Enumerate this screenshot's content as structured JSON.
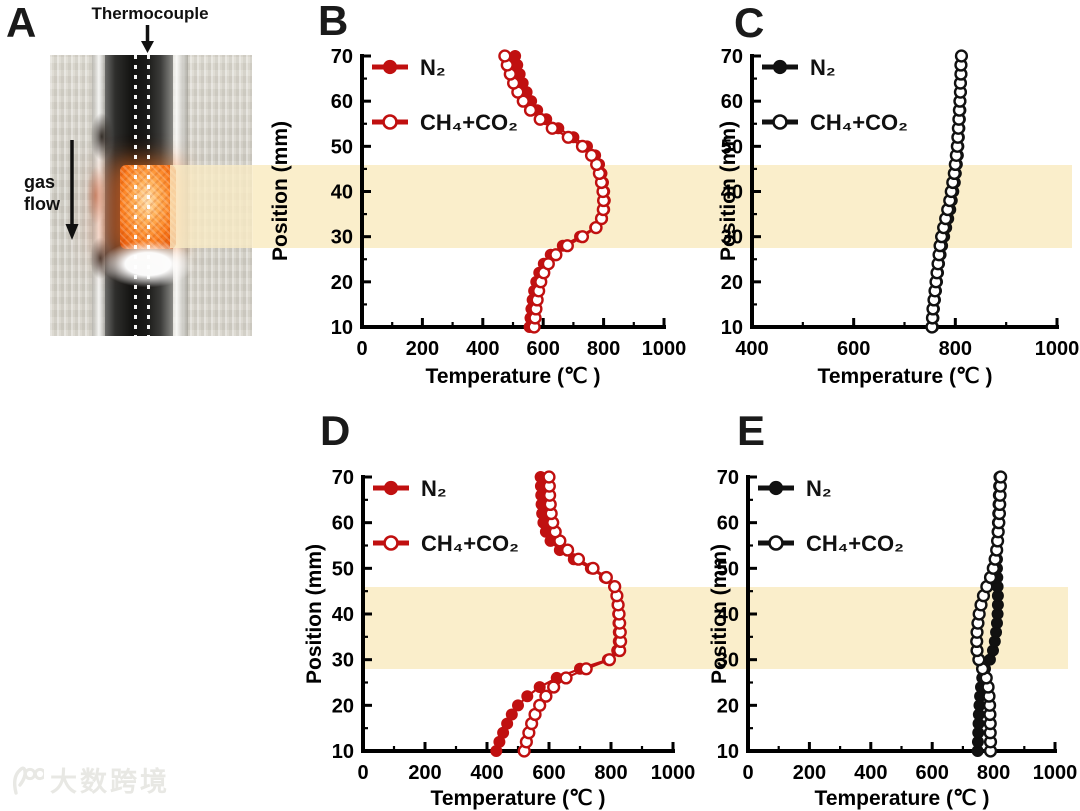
{
  "figure": {
    "background": "#ffffff",
    "band_color": "#FAEECB",
    "catalyst_bed_mm": {
      "from": 28,
      "to": 46
    }
  },
  "panel_a": {
    "label": "A",
    "thermocouple_label": "Thermocouple",
    "gas_flow_line1": "gas",
    "gas_flow_line2": "flow"
  },
  "watermark": {
    "text": "大数跨境",
    "logo": "100-swirl-logo"
  },
  "chart_data": [
    {
      "id": "B",
      "type": "scatter",
      "panel_label": "B",
      "series_color": "#C01010",
      "xlabel": "Temperature (℃ )",
      "ylabel": "Position (mm)",
      "xlim": [
        0,
        1000
      ],
      "x_major_ticks": [
        0,
        200,
        400,
        600,
        800,
        1000
      ],
      "x_minor_step": 100,
      "ylim": [
        10,
        70
      ],
      "y_major_ticks": [
        10,
        20,
        30,
        40,
        50,
        60,
        70
      ],
      "y_minor_step": 5,
      "highlight_band_mm": [
        28,
        46
      ],
      "positions_mm": [
        10,
        12,
        14,
        16,
        18,
        20,
        22,
        24,
        26,
        28,
        30,
        32,
        34,
        36,
        38,
        40,
        42,
        44,
        46,
        48,
        50,
        52,
        54,
        56,
        58,
        60,
        62,
        64,
        66,
        68,
        70
      ],
      "series": [
        {
          "name": "N₂",
          "marker": "filled-circle",
          "temperatures_c": [
            555,
            558,
            561,
            565,
            570,
            577,
            587,
            602,
            625,
            665,
            722,
            772,
            795,
            802,
            804,
            802,
            798,
            793,
            785,
            772,
            745,
            700,
            650,
            610,
            580,
            560,
            545,
            532,
            522,
            514,
            507
          ]
        },
        {
          "name": "CH₄+CO₂",
          "marker": "open-circle",
          "temperatures_c": [
            570,
            573,
            576,
            580,
            585,
            592,
            602,
            617,
            642,
            680,
            730,
            775,
            793,
            799,
            800,
            798,
            793,
            786,
            777,
            760,
            730,
            683,
            630,
            590,
            558,
            534,
            516,
            502,
            491,
            481,
            473
          ]
        }
      ]
    },
    {
      "id": "C",
      "type": "scatter",
      "panel_label": "C",
      "series_color": "#111111",
      "xlabel": "Temperature (℃ )",
      "ylabel": "Position (mm)",
      "xlim": [
        400,
        1000
      ],
      "x_major_ticks": [
        400,
        600,
        800,
        1000
      ],
      "x_minor_step": 100,
      "ylim": [
        10,
        70
      ],
      "y_major_ticks": [
        10,
        20,
        30,
        40,
        50,
        60,
        70
      ],
      "y_minor_step": 5,
      "highlight_band_mm": [
        28,
        46
      ],
      "positions_mm": [
        10,
        12,
        14,
        16,
        18,
        20,
        22,
        24,
        26,
        28,
        30,
        32,
        34,
        36,
        38,
        40,
        42,
        44,
        46,
        48,
        50,
        52,
        54,
        56,
        58,
        60,
        62,
        64,
        66,
        68,
        70
      ],
      "series": [
        {
          "name": "N₂",
          "marker": "filled-circle",
          "temperatures_c": [
            756,
            757,
            758,
            760,
            762,
            764,
            766,
            768,
            771,
            774,
            778,
            782,
            786,
            790,
            793,
            796,
            799,
            801,
            803,
            805,
            806,
            807,
            808,
            809,
            810,
            810,
            811,
            811,
            812,
            812,
            812
          ]
        },
        {
          "name": "CH₄+CO₂",
          "marker": "open-circle",
          "temperatures_c": [
            754,
            755,
            756,
            758,
            760,
            762,
            764,
            766,
            768,
            770,
            773,
            777,
            781,
            785,
            789,
            792,
            795,
            798,
            800,
            802,
            804,
            805,
            806,
            807,
            808,
            809,
            810,
            810,
            811,
            811,
            812
          ]
        }
      ]
    },
    {
      "id": "D",
      "type": "scatter",
      "panel_label": "D",
      "series_color": "#C01010",
      "xlabel": "Temperature (℃ )",
      "ylabel": "Position (mm)",
      "xlim": [
        0,
        1000
      ],
      "x_major_ticks": [
        0,
        200,
        400,
        600,
        800,
        1000
      ],
      "x_minor_step": 100,
      "ylim": [
        10,
        70
      ],
      "y_major_ticks": [
        10,
        20,
        30,
        40,
        50,
        60,
        70
      ],
      "y_minor_step": 5,
      "highlight_band_mm": [
        28,
        46
      ],
      "positions_mm": [
        10,
        12,
        14,
        16,
        18,
        20,
        22,
        24,
        26,
        28,
        30,
        32,
        34,
        36,
        38,
        40,
        42,
        44,
        46,
        48,
        50,
        52,
        54,
        56,
        58,
        60,
        62,
        64,
        66,
        68,
        70
      ],
      "series": [
        {
          "name": "N₂",
          "marker": "filled-circle",
          "temperatures_c": [
            430,
            440,
            452,
            465,
            480,
            500,
            530,
            570,
            625,
            700,
            790,
            820,
            825,
            825,
            824,
            823,
            821,
            818,
            810,
            780,
            735,
            680,
            635,
            605,
            590,
            582,
            578,
            576,
            575,
            574,
            573
          ]
        },
        {
          "name": "CH₄+CO₂",
          "marker": "open-circle",
          "temperatures_c": [
            520,
            527,
            535,
            544,
            555,
            570,
            590,
            615,
            655,
            720,
            795,
            828,
            831,
            830,
            828,
            826,
            823,
            819,
            812,
            785,
            742,
            695,
            660,
            635,
            620,
            612,
            607,
            604,
            602,
            601,
            600
          ]
        }
      ]
    },
    {
      "id": "E",
      "type": "scatter",
      "panel_label": "E",
      "series_color": "#111111",
      "xlabel": "Temperature (℃ )",
      "ylabel": "Position (mm)",
      "xlim": [
        0,
        1000
      ],
      "x_major_ticks": [
        0,
        200,
        400,
        600,
        800,
        1000
      ],
      "x_minor_step": 100,
      "ylim": [
        10,
        70
      ],
      "y_major_ticks": [
        10,
        20,
        30,
        40,
        50,
        60,
        70
      ],
      "y_minor_step": 5,
      "highlight_band_mm": [
        28,
        46
      ],
      "positions_mm": [
        10,
        12,
        14,
        16,
        18,
        20,
        22,
        24,
        26,
        28,
        30,
        32,
        34,
        36,
        38,
        40,
        42,
        44,
        46,
        48,
        50,
        52,
        54,
        56,
        58,
        60,
        62,
        64,
        66,
        68,
        70
      ],
      "series": [
        {
          "name": "N₂",
          "marker": "filled-circle",
          "temperatures_c": [
            748,
            749,
            750,
            751,
            752,
            754,
            756,
            759,
            763,
            772,
            788,
            798,
            804,
            808,
            811,
            813,
            814,
            814,
            813,
            812,
            811,
            811,
            811,
            812,
            813,
            814,
            815,
            816,
            817,
            818,
            819
          ]
        },
        {
          "name": "CH₄+CO₂",
          "marker": "open-circle",
          "temperatures_c": [
            790,
            790,
            789,
            789,
            788,
            787,
            785,
            782,
            776,
            764,
            752,
            746,
            745,
            746,
            749,
            753,
            759,
            767,
            778,
            790,
            799,
            805,
            810,
            813,
            815,
            817,
            819,
            820,
            821,
            822,
            823
          ]
        }
      ]
    }
  ]
}
